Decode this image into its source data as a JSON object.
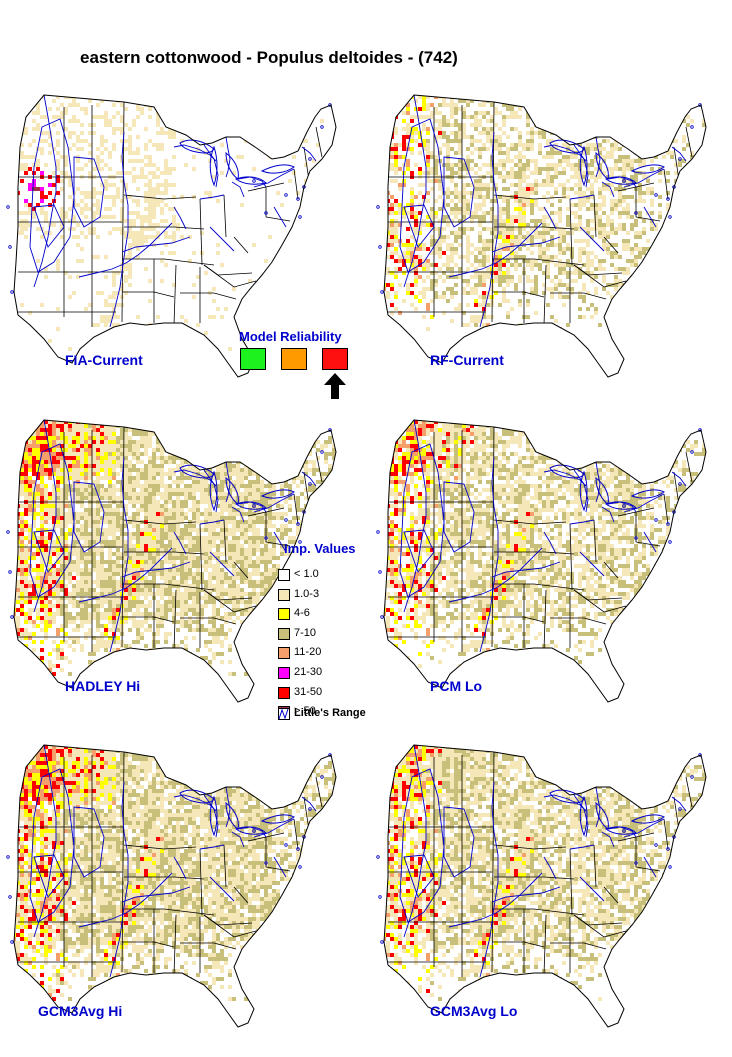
{
  "title": "eastern cottonwood - Populus deltoides - (742)",
  "panels": [
    {
      "id": "fia",
      "label": "FIA-Current",
      "pattern": "fia"
    },
    {
      "id": "rf",
      "label": "RF-Current",
      "pattern": "rf"
    },
    {
      "id": "hadley",
      "label": "HADLEY Hi",
      "pattern": "hi"
    },
    {
      "id": "pcm",
      "label": "PCM Lo",
      "pattern": "lo"
    },
    {
      "id": "gcm-hi",
      "label": "GCM3Avg Hi",
      "pattern": "hi"
    },
    {
      "id": "gcm-lo",
      "label": "GCM3Avg Lo",
      "pattern": "lo2"
    }
  ],
  "reliability": {
    "title": "Model Reliability",
    "levels": [
      {
        "name": "high",
        "color": "#1ef21e"
      },
      {
        "name": "medium",
        "color": "#ff9a00"
      },
      {
        "name": "low",
        "color": "#ff1010"
      }
    ],
    "selected": "low",
    "arrow_icon": "up-arrow-icon"
  },
  "legend": {
    "title": "Imp. Values",
    "items": [
      {
        "label": "< 1.0",
        "color": "#ffffff"
      },
      {
        "label": "1.0-3",
        "color": "#f6e7b8"
      },
      {
        "label": "4-6",
        "color": "#ffff00"
      },
      {
        "label": "7-10",
        "color": "#c8c07a"
      },
      {
        "label": "11-20",
        "color": "#f5a06a"
      },
      {
        "label": "21-30",
        "color": "#ff00ff"
      },
      {
        "label": "31-50",
        "color": "#ff0000"
      },
      {
        "label": "> 50",
        "color": "#a0304a"
      }
    ],
    "range_label": "Little's Range",
    "range_color": "#0000cc"
  },
  "map_colors": {
    "outline": "#000000",
    "water": "#0000cc",
    "range": "#0000cc"
  }
}
